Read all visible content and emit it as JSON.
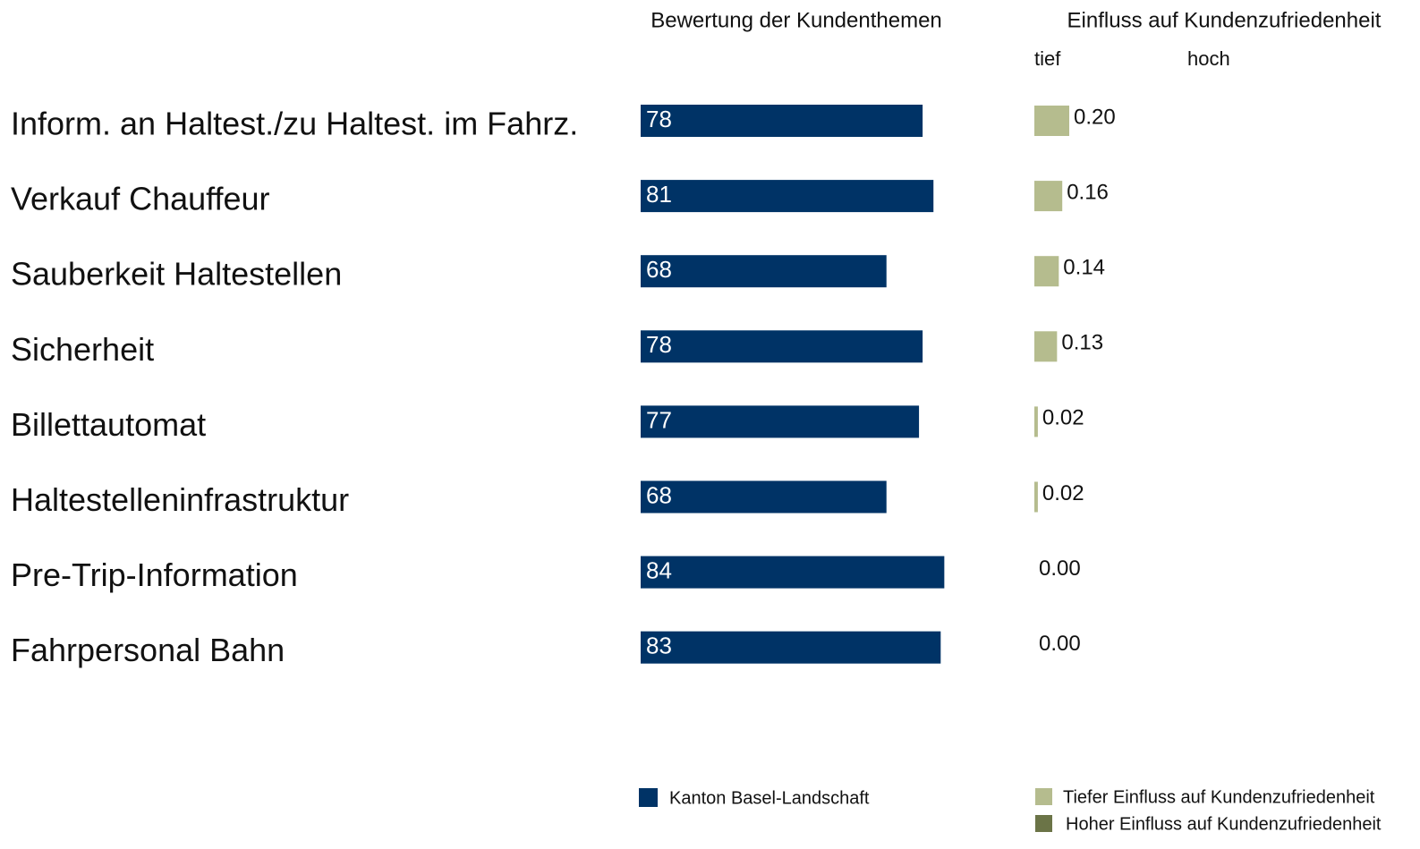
{
  "chart_data": [
    {
      "type": "bar",
      "orientation": "horizontal",
      "title": "Bewertung der Kundenthemen",
      "categories": [
        "Inform. an Haltest./zu Haltest. im Fahrz.",
        "Verkauf Chauffeur",
        "Sauberkeit Haltestellen",
        "Sicherheit",
        "Billettautomat",
        "Haltestelleninfrastruktur",
        "Pre-Trip-Information",
        "Fahrpersonal Bahn"
      ],
      "series": [
        {
          "name": "Kanton Basel-Landschaft",
          "color": "#003366",
          "values": [
            78,
            81,
            68,
            78,
            77,
            68,
            84,
            83
          ]
        }
      ],
      "xlim": [
        0,
        100
      ]
    },
    {
      "type": "bar",
      "orientation": "horizontal",
      "title": "Einfluss auf Kundenzufriedenheit",
      "axis_labels": [
        "tief",
        "hoch"
      ],
      "series": [
        {
          "name": "Tiefer Einfluss auf Kundenzufriedenheit",
          "color": "#b5bc8e",
          "values": [
            0.2,
            0.16,
            0.14,
            0.13,
            0.02,
            0.02,
            0.0,
            0.0
          ],
          "value_labels": [
            "0.20",
            "0.16",
            "0.14",
            "0.13",
            "0.02",
            "0.02",
            "0.00",
            "0.00"
          ]
        },
        {
          "name": "Hoher Einfluss auf Kundenzufriedenheit",
          "color": "#6b7447",
          "values": [
            null,
            null,
            null,
            null,
            null,
            null,
            null,
            null
          ]
        }
      ],
      "xlim": [
        0,
        1
      ]
    }
  ]
}
